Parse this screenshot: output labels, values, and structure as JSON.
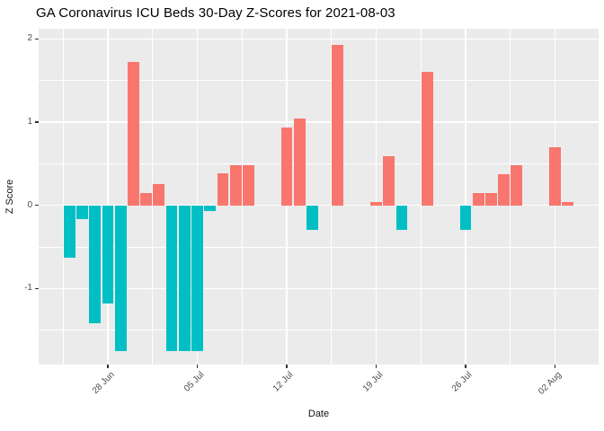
{
  "chart_data": {
    "type": "bar",
    "title": "GA Coronavirus ICU Beds 30-Day Z-Scores for 2021-08-03",
    "xlabel": "Date",
    "ylabel": "Z Score",
    "legend": "none",
    "grid": "on",
    "panel_background": "#EBEBEB",
    "gridline_color": "#FFFFFF",
    "axis_text_color": "#4D4D4D",
    "tick_mark_color": "#333333",
    "positive_color": "#F8766D",
    "negative_color": "#00BFC4",
    "ylim": [
      -1.92,
      2.11
    ],
    "y_ticks": [
      2,
      1,
      0,
      -1
    ],
    "y_minor_ticks": [
      1.5,
      0.5,
      -0.5,
      -1.5
    ],
    "x_ticks": [
      {
        "label": "28 Jun",
        "day": 0
      },
      {
        "label": "05 Jul",
        "day": 7
      },
      {
        "label": "12 Jul",
        "day": 14
      },
      {
        "label": "19 Jul",
        "day": 21
      },
      {
        "label": "26 Jul",
        "day": 28
      },
      {
        "label": "02 Aug",
        "day": 35
      }
    ],
    "points": [
      {
        "date": "25 Jun",
        "day": -3,
        "value": -0.63
      },
      {
        "date": "26 Jun",
        "day": -2,
        "value": -0.17
      },
      {
        "date": "27 Jun",
        "day": -1,
        "value": -1.42
      },
      {
        "date": "28 Jun",
        "day": 0,
        "value": -1.18
      },
      {
        "date": "29 Jun",
        "day": 1,
        "value": -1.75
      },
      {
        "date": "30 Jun",
        "day": 2,
        "value": 1.72
      },
      {
        "date": "01 Jul",
        "day": 3,
        "value": 0.15
      },
      {
        "date": "02 Jul",
        "day": 4,
        "value": 0.26
      },
      {
        "date": "03 Jul",
        "day": 5,
        "value": -1.75
      },
      {
        "date": "04 Jul",
        "day": 6,
        "value": -1.75
      },
      {
        "date": "05 Jul",
        "day": 7,
        "value": -1.75
      },
      {
        "date": "06 Jul",
        "day": 8,
        "value": -0.07
      },
      {
        "date": "07 Jul",
        "day": 9,
        "value": 0.38
      },
      {
        "date": "08 Jul",
        "day": 10,
        "value": 0.48
      },
      {
        "date": "09 Jul",
        "day": 11,
        "value": 0.48
      },
      {
        "date": "12 Jul",
        "day": 14,
        "value": 0.93
      },
      {
        "date": "13 Jul",
        "day": 15,
        "value": 1.04
      },
      {
        "date": "14 Jul",
        "day": 16,
        "value": -0.29
      },
      {
        "date": "16 Jul",
        "day": 18,
        "value": 1.93
      },
      {
        "date": "19 Jul",
        "day": 21,
        "value": 0.04
      },
      {
        "date": "20 Jul",
        "day": 22,
        "value": 0.59
      },
      {
        "date": "21 Jul",
        "day": 23,
        "value": -0.29
      },
      {
        "date": "23 Jul",
        "day": 25,
        "value": 1.6
      },
      {
        "date": "26 Jul",
        "day": 28,
        "value": -0.29
      },
      {
        "date": "27 Jul",
        "day": 29,
        "value": 0.15
      },
      {
        "date": "28 Jul",
        "day": 30,
        "value": 0.15
      },
      {
        "date": "29 Jul",
        "day": 31,
        "value": 0.37
      },
      {
        "date": "30 Jul",
        "day": 32,
        "value": 0.48
      },
      {
        "date": "02 Aug",
        "day": 35,
        "value": 0.7
      },
      {
        "date": "03 Aug",
        "day": 36,
        "value": 0.04
      }
    ]
  }
}
